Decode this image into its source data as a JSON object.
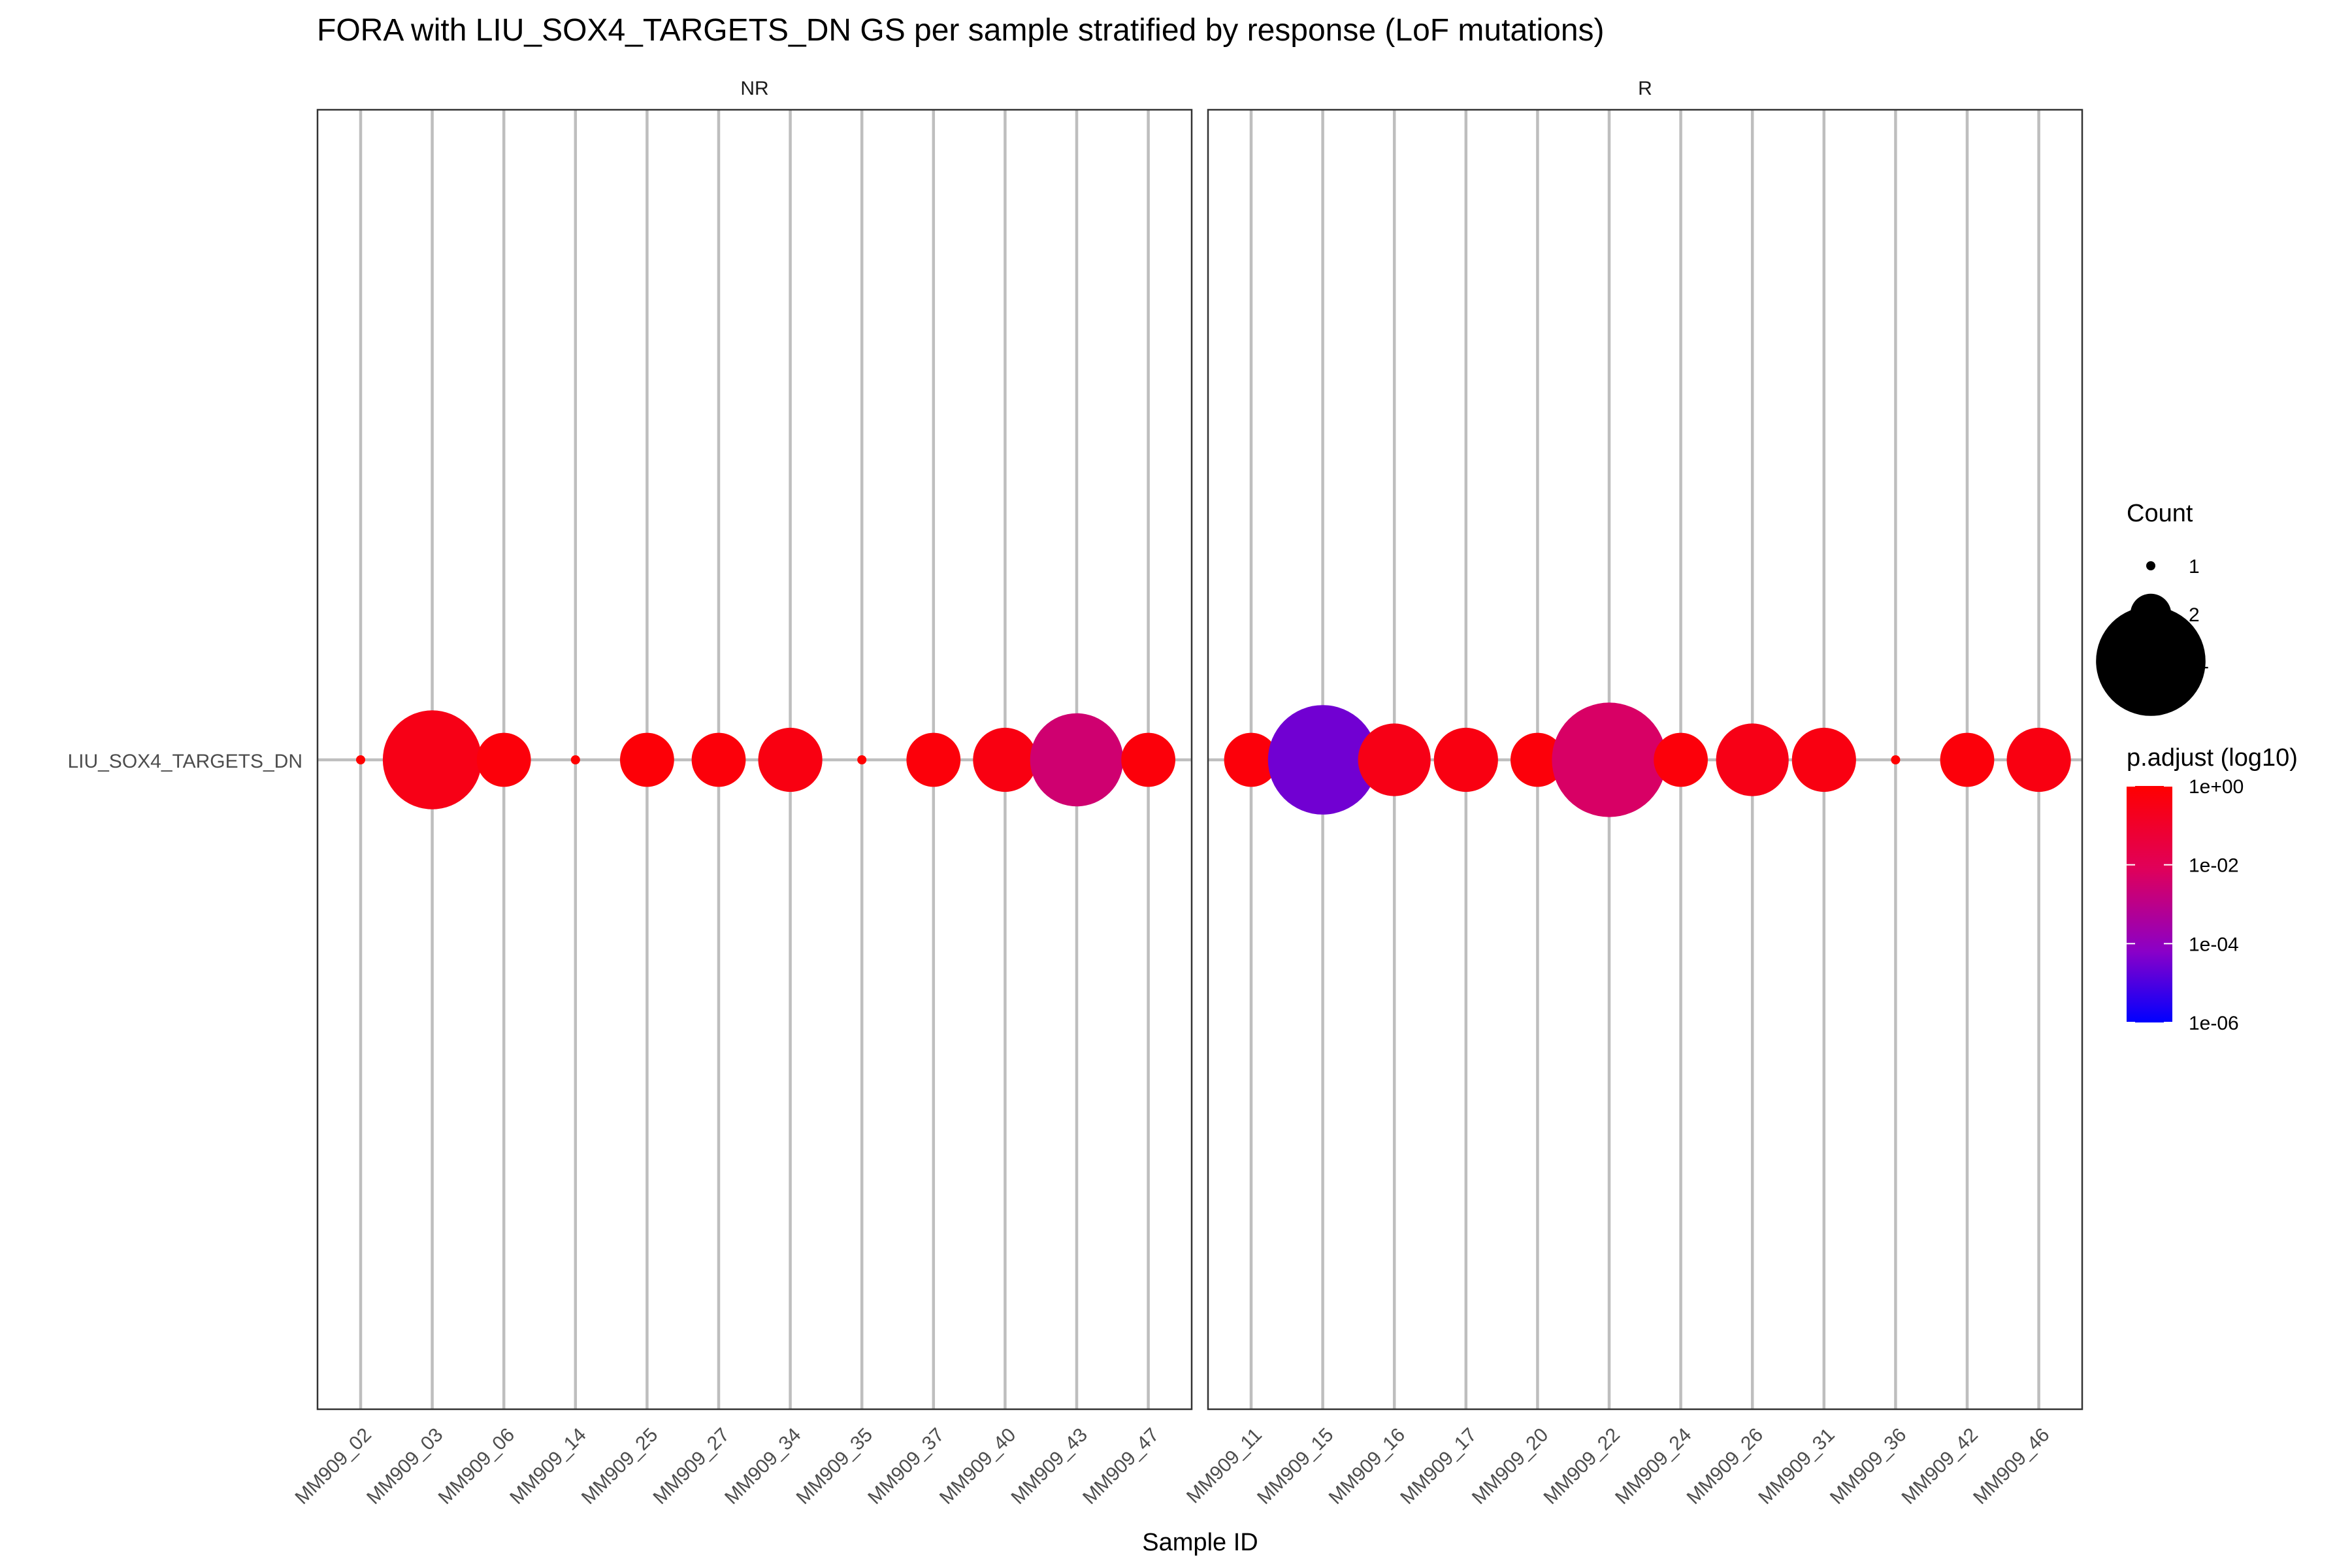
{
  "chart_data": {
    "type": "scatter",
    "title": "FORA with LIU_SOX4_TARGETS_DN GS per sample stratified by response (LoF mutations)",
    "xlabel": "Sample ID",
    "ylabel": "",
    "gene_set": "LIU_SOX4_TARGETS_DN",
    "grid": true,
    "legend_position": "right",
    "panels": [
      {
        "name": "NR",
        "points": [
          {
            "sample": "MM909_02",
            "count": 1,
            "p_adjust": 1.0
          },
          {
            "sample": "MM909_03",
            "count": 9,
            "p_adjust": 0.3
          },
          {
            "sample": "MM909_06",
            "count": 3,
            "p_adjust": 0.6
          },
          {
            "sample": "MM909_14",
            "count": 1,
            "p_adjust": 1.0
          },
          {
            "sample": "MM909_25",
            "count": 3,
            "p_adjust": 0.7
          },
          {
            "sample": "MM909_27",
            "count": 3,
            "p_adjust": 0.6
          },
          {
            "sample": "MM909_34",
            "count": 4,
            "p_adjust": 0.4
          },
          {
            "sample": "MM909_35",
            "count": 1,
            "p_adjust": 1.0
          },
          {
            "sample": "MM909_37",
            "count": 3,
            "p_adjust": 0.6
          },
          {
            "sample": "MM909_40",
            "count": 4,
            "p_adjust": 0.4
          },
          {
            "sample": "MM909_43",
            "count": 8,
            "p_adjust": 0.003
          },
          {
            "sample": "MM909_47",
            "count": 3,
            "p_adjust": 0.6
          }
        ]
      },
      {
        "name": "R",
        "points": [
          {
            "sample": "MM909_11",
            "count": 3,
            "p_adjust": 0.6
          },
          {
            "sample": "MM909_15",
            "count": 11,
            "p_adjust": 3e-05
          },
          {
            "sample": "MM909_16",
            "count": 5,
            "p_adjust": 0.3
          },
          {
            "sample": "MM909_17",
            "count": 4,
            "p_adjust": 0.4
          },
          {
            "sample": "MM909_20",
            "count": 3,
            "p_adjust": 0.6
          },
          {
            "sample": "MM909_22",
            "count": 12,
            "p_adjust": 0.005
          },
          {
            "sample": "MM909_24",
            "count": 3,
            "p_adjust": 0.6
          },
          {
            "sample": "MM909_26",
            "count": 5,
            "p_adjust": 0.3
          },
          {
            "sample": "MM909_31",
            "count": 4,
            "p_adjust": 0.4
          },
          {
            "sample": "MM909_36",
            "count": 1,
            "p_adjust": 1.0
          },
          {
            "sample": "MM909_42",
            "count": 3,
            "p_adjust": 0.6
          },
          {
            "sample": "MM909_46",
            "count": 4,
            "p_adjust": 0.4
          }
        ]
      }
    ],
    "size_legend": {
      "title": "Count",
      "entries": [
        {
          "label": "1",
          "count": 1
        },
        {
          "label": "2",
          "count": 2
        },
        {
          "label": "11",
          "count": 11
        }
      ]
    },
    "color_legend": {
      "title": "p.adjust (log10)",
      "scale": "log10",
      "range": [
        1e-06,
        1
      ],
      "ticks": [
        {
          "label": "1e+00",
          "value": 1
        },
        {
          "label": "1e-02",
          "value": 0.01
        },
        {
          "label": "1e-04",
          "value": 0.0001
        },
        {
          "label": "1e-06",
          "value": 1e-06
        }
      ],
      "color_high": "#FF0000",
      "color_low": "#0000FF"
    },
    "colors": {
      "grid": "#BEBEBE",
      "panel_border": "#333333"
    }
  }
}
